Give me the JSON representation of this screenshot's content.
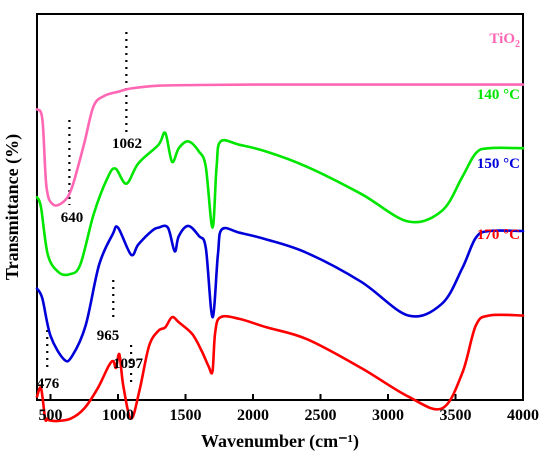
{
  "chart_data": {
    "type": "line",
    "xlabel": "Wavenumber (cm⁻¹)",
    "ylabel": "Transmittance (%)",
    "xlim": [
      400,
      4000
    ],
    "x_ticks": [
      500,
      1000,
      1500,
      2000,
      2500,
      3000,
      3500,
      4000
    ],
    "y_ticks_shown": false,
    "series": [
      {
        "name": "TiO2",
        "color": "#ff66b3",
        "points": [
          [
            400,
            8.6
          ],
          [
            440,
            8.3
          ],
          [
            470,
            6.3
          ],
          [
            520,
            5.78
          ],
          [
            600,
            5.88
          ],
          [
            660,
            6.3
          ],
          [
            750,
            7.6
          ],
          [
            820,
            8.7
          ],
          [
            900,
            9.0
          ],
          [
            1000,
            9.12
          ],
          [
            1100,
            9.22
          ],
          [
            1300,
            9.3
          ],
          [
            1600,
            9.32
          ],
          [
            2000,
            9.33
          ],
          [
            2500,
            9.33
          ],
          [
            3000,
            9.33
          ],
          [
            3500,
            9.33
          ],
          [
            4000,
            9.33
          ]
        ]
      },
      {
        "name": "140 °C",
        "color": "#00e600",
        "points": [
          [
            400,
            6.0
          ],
          [
            430,
            5.7
          ],
          [
            480,
            4.3
          ],
          [
            560,
            3.78
          ],
          [
            640,
            3.72
          ],
          [
            720,
            4.0
          ],
          [
            820,
            5.5
          ],
          [
            920,
            6.55
          ],
          [
            980,
            6.85
          ],
          [
            1062,
            6.4
          ],
          [
            1150,
            7.0
          ],
          [
            1300,
            7.55
          ],
          [
            1350,
            7.9
          ],
          [
            1400,
            7.05
          ],
          [
            1450,
            7.45
          ],
          [
            1520,
            7.65
          ],
          [
            1600,
            7.35
          ],
          [
            1650,
            6.9
          ],
          [
            1700,
            5.1
          ],
          [
            1730,
            6.9
          ],
          [
            1760,
            7.65
          ],
          [
            1900,
            7.55
          ],
          [
            2100,
            7.35
          ],
          [
            2400,
            6.9
          ],
          [
            2800,
            6.1
          ],
          [
            3150,
            5.28
          ],
          [
            3400,
            5.6
          ],
          [
            3550,
            6.6
          ],
          [
            3650,
            7.3
          ],
          [
            3750,
            7.45
          ],
          [
            4000,
            7.45
          ]
        ]
      },
      {
        "name": "150 °C",
        "color": "#0000d9",
        "points": [
          [
            400,
            3.3
          ],
          [
            440,
            3.0
          ],
          [
            500,
            1.9
          ],
          [
            600,
            1.2
          ],
          [
            660,
            1.3
          ],
          [
            760,
            2.2
          ],
          [
            860,
            4.0
          ],
          [
            960,
            4.9
          ],
          [
            1000,
            5.1
          ],
          [
            1097,
            4.3
          ],
          [
            1150,
            4.6
          ],
          [
            1250,
            5.0
          ],
          [
            1300,
            5.1
          ],
          [
            1370,
            5.1
          ],
          [
            1420,
            4.4
          ],
          [
            1450,
            4.85
          ],
          [
            1520,
            5.15
          ],
          [
            1600,
            4.85
          ],
          [
            1650,
            4.5
          ],
          [
            1700,
            2.45
          ],
          [
            1740,
            4.3
          ],
          [
            1770,
            5.05
          ],
          [
            1900,
            4.95
          ],
          [
            2100,
            4.75
          ],
          [
            2400,
            4.35
          ],
          [
            2800,
            3.5
          ],
          [
            3150,
            2.5
          ],
          [
            3400,
            2.85
          ],
          [
            3550,
            3.9
          ],
          [
            3650,
            4.8
          ],
          [
            3750,
            5.0
          ],
          [
            4000,
            5.0
          ]
        ]
      },
      {
        "name": "170 °C",
        "color": "#ff0000",
        "points": [
          [
            400,
            0.1
          ],
          [
            430,
            0.35
          ],
          [
            460,
            -0.55
          ],
          [
            476,
            -0.55
          ],
          [
            490,
            -0.6
          ],
          [
            550,
            -0.62
          ],
          [
            650,
            -0.55
          ],
          [
            750,
            -0.25
          ],
          [
            850,
            0.35
          ],
          [
            930,
            1.0
          ],
          [
            965,
            1.15
          ],
          [
            985,
            0.95
          ],
          [
            1010,
            1.35
          ],
          [
            1040,
            0.4
          ],
          [
            1097,
            -0.55
          ],
          [
            1160,
            0.3
          ],
          [
            1230,
            1.6
          ],
          [
            1300,
            2.05
          ],
          [
            1350,
            2.15
          ],
          [
            1400,
            2.45
          ],
          [
            1450,
            2.3
          ],
          [
            1550,
            1.95
          ],
          [
            1620,
            1.45
          ],
          [
            1670,
            1.0
          ],
          [
            1700,
            0.85
          ],
          [
            1720,
            2.0
          ],
          [
            1760,
            2.45
          ],
          [
            1900,
            2.4
          ],
          [
            2100,
            2.15
          ],
          [
            2400,
            1.8
          ],
          [
            2800,
            0.95
          ],
          [
            3150,
            0.1
          ],
          [
            3400,
            -0.25
          ],
          [
            3550,
            0.8
          ],
          [
            3650,
            2.2
          ],
          [
            3750,
            2.5
          ],
          [
            4000,
            2.5
          ]
        ]
      }
    ],
    "annotations": [
      {
        "text": "1062",
        "x": 1062
      },
      {
        "text": "640",
        "x": 640
      },
      {
        "text": "965",
        "x": 965
      },
      {
        "text": "1097",
        "x": 1097
      },
      {
        "text": "476",
        "x": 476
      }
    ]
  }
}
